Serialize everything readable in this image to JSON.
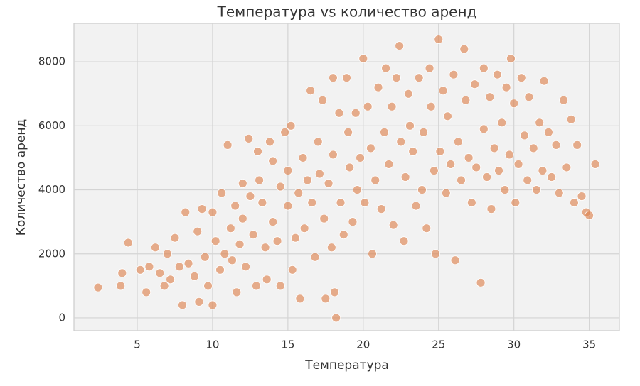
{
  "chart_data": {
    "type": "scatter",
    "title": "Температура vs количество аренд",
    "x_label": "Температура",
    "y_label": "Количество аренд",
    "color": "#dd8452",
    "grid": true,
    "xlim": [
      0.8,
      37.0
    ],
    "ylim": [
      -400,
      9200
    ],
    "xticks": [
      5,
      10,
      15,
      20,
      25,
      30,
      35
    ],
    "yticks": [
      0,
      2000,
      4000,
      6000,
      8000
    ],
    "x": [
      2.4,
      3.9,
      4.0,
      4.4,
      5.2,
      5.6,
      5.8,
      6.2,
      6.5,
      6.8,
      7.0,
      7.2,
      7.5,
      7.8,
      8.0,
      8.2,
      8.4,
      8.8,
      9.0,
      9.1,
      9.3,
      9.5,
      9.7,
      10.0,
      10.0,
      10.2,
      10.5,
      10.6,
      10.8,
      11.0,
      11.2,
      11.3,
      11.5,
      11.6,
      11.8,
      12.0,
      12.0,
      12.2,
      12.4,
      12.5,
      12.7,
      12.9,
      13.0,
      13.1,
      13.3,
      13.5,
      13.6,
      13.8,
      14.0,
      14.0,
      14.3,
      14.5,
      14.5,
      14.8,
      15.0,
      15.0,
      15.2,
      15.3,
      15.5,
      15.7,
      15.8,
      16.0,
      16.1,
      16.3,
      16.5,
      16.6,
      16.8,
      17.0,
      17.1,
      17.3,
      17.4,
      17.5,
      17.7,
      17.9,
      18.0,
      18.0,
      18.1,
      18.2,
      18.4,
      18.5,
      18.7,
      18.9,
      19.0,
      19.1,
      19.3,
      19.5,
      19.6,
      19.8,
      20.0,
      20.1,
      20.3,
      20.5,
      20.6,
      20.8,
      21.0,
      21.2,
      21.4,
      21.5,
      21.7,
      21.9,
      22.0,
      22.2,
      22.4,
      22.5,
      22.7,
      22.8,
      23.0,
      23.1,
      23.3,
      23.5,
      23.7,
      23.9,
      24.0,
      24.2,
      24.4,
      24.5,
      24.7,
      24.8,
      25.0,
      25.1,
      25.3,
      25.5,
      25.6,
      25.8,
      26.0,
      26.1,
      26.3,
      26.5,
      26.7,
      26.8,
      27.0,
      27.2,
      27.4,
      27.5,
      27.8,
      28.0,
      28.0,
      28.2,
      28.4,
      28.5,
      28.7,
      28.9,
      29.0,
      29.2,
      29.4,
      29.5,
      29.7,
      29.8,
      30.0,
      30.1,
      30.3,
      30.5,
      30.7,
      30.9,
      31.0,
      31.3,
      31.5,
      31.7,
      31.9,
      32.0,
      32.3,
      32.5,
      32.8,
      33.0,
      33.3,
      33.5,
      33.8,
      34.0,
      34.2,
      34.5,
      34.8,
      35.0,
      35.4
    ],
    "values": [
      950,
      1000,
      1400,
      2350,
      1500,
      800,
      1600,
      2200,
      1400,
      1000,
      2000,
      1200,
      2500,
      1600,
      400,
      3300,
      1700,
      1300,
      2700,
      500,
      3400,
      1900,
      1000,
      3300,
      400,
      2400,
      1500,
      3900,
      2000,
      5400,
      2800,
      1800,
      3500,
      800,
      2300,
      4200,
      3100,
      1600,
      5600,
      3800,
      2600,
      1000,
      5200,
      4300,
      3600,
      2200,
      1200,
      5500,
      4900,
      3000,
      2400,
      4100,
      1000,
      5800,
      3500,
      4600,
      6000,
      1500,
      2500,
      3900,
      600,
      5000,
      2800,
      4300,
      7100,
      3600,
      1900,
      5500,
      4500,
      6800,
      3100,
      600,
      4200,
      2200,
      7500,
      5100,
      800,
      0,
      6400,
      3600,
      2600,
      7500,
      5800,
      4700,
      3000,
      6400,
      4000,
      5000,
      8100,
      3600,
      6600,
      5300,
      2000,
      4300,
      7200,
      3400,
      5800,
      7800,
      4800,
      6600,
      2900,
      7500,
      8500,
      5500,
      2400,
      4400,
      7000,
      6000,
      5200,
      3500,
      7500,
      4000,
      5800,
      2800,
      7800,
      6600,
      4600,
      2000,
      8700,
      5200,
      7100,
      3900,
      6300,
      4800,
      7600,
      1800,
      5500,
      4300,
      8400,
      6800,
      5000,
      3600,
      7300,
      4700,
      1100,
      7800,
      5900,
      4400,
      6900,
      3400,
      5300,
      7600,
      4600,
      6100,
      4000,
      7200,
      5100,
      8100,
      6700,
      3600,
      4800,
      7500,
      5700,
      4300,
      6900,
      5300,
      4000,
      6100,
      4600,
      7400,
      5800,
      4400,
      5400,
      3900,
      6800,
      4700,
      6200,
      3600,
      5400,
      3800,
      3300,
      3200,
      4800
    ]
  }
}
